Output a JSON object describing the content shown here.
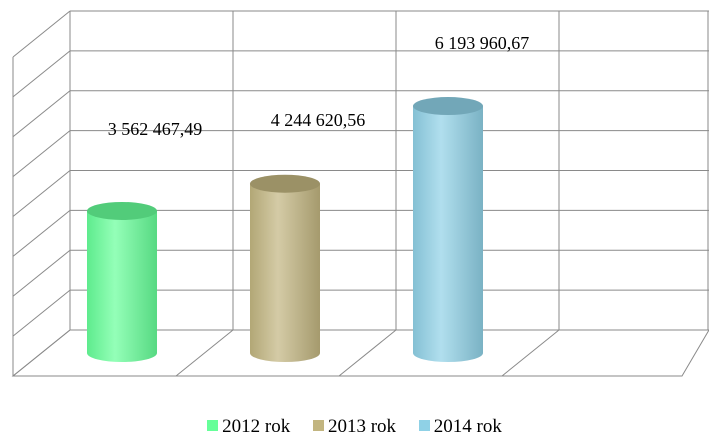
{
  "chart_data": {
    "type": "bar",
    "style": "3d-cylinder",
    "grid": true,
    "legend_position": "bottom",
    "ylim": [
      0,
      8000000
    ],
    "series": [
      {
        "name": "2012 rok",
        "value": 3562467.49,
        "label": "3 562 467,49",
        "color": "#66ff99"
      },
      {
        "name": "2013 rok",
        "value": 4244620.56,
        "label": "4 244 620,56",
        "color": "#c2b580"
      },
      {
        "name": "2014 rok",
        "value": 6193960.67,
        "label": "6 193 960,67",
        "color": "#8fd1e6"
      }
    ]
  }
}
